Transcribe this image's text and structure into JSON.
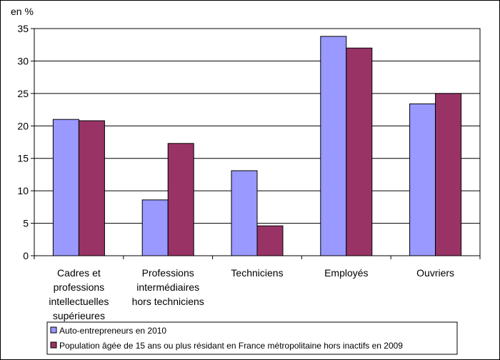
{
  "chart_data": {
    "type": "bar",
    "y_unit_label": "en %",
    "categories": [
      [
        "Cadres et",
        "professions",
        "intellectuelles",
        "supérieures"
      ],
      [
        "Professions",
        "intermédiaires",
        "hors techniciens"
      ],
      [
        "Techniciens"
      ],
      [
        "Employés"
      ],
      [
        "Ouvriers"
      ]
    ],
    "series": [
      {
        "name": "Auto-entrepreneurs en 2010",
        "color": "#9999ff",
        "values": [
          21.0,
          8.6,
          13.1,
          33.8,
          23.4
        ]
      },
      {
        "name": "Population âgée de 15 ans ou plus résidant en France métropolitaine hors inactifs en 2009",
        "color": "#993366",
        "values": [
          20.8,
          17.3,
          4.6,
          32.0,
          25.0
        ]
      }
    ],
    "ylim": [
      0,
      35
    ],
    "yticks": [
      0,
      5,
      10,
      15,
      20,
      25,
      30,
      35
    ],
    "grid": true,
    "legend_position": "bottom"
  }
}
